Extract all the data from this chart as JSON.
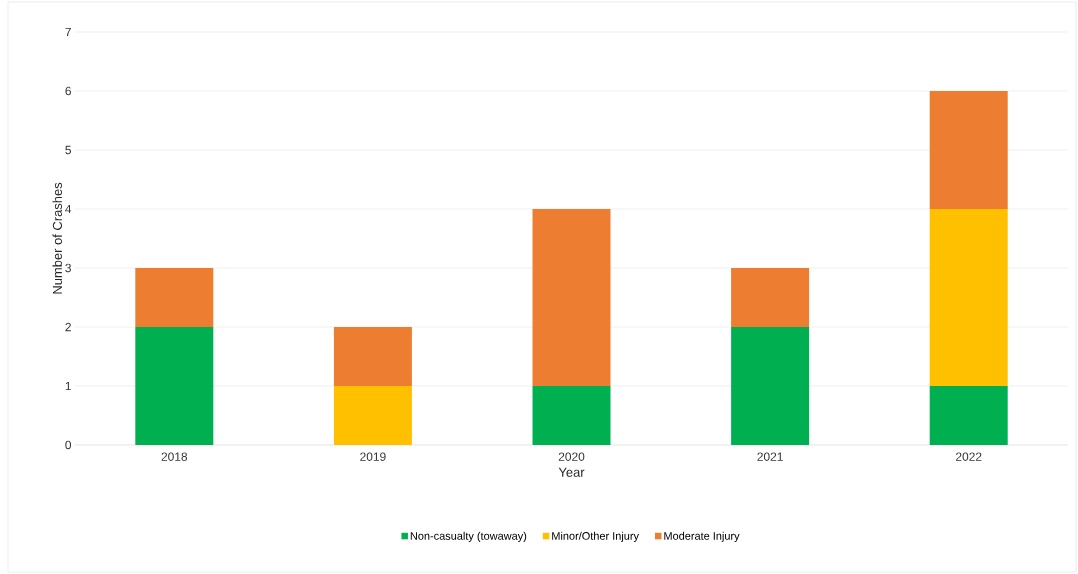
{
  "chart_data": {
    "type": "bar",
    "stacked": true,
    "xlabel": "Year",
    "ylabel": "Number of Crashes",
    "categories": [
      "2018",
      "2019",
      "2020",
      "2021",
      "2022"
    ],
    "series": [
      {
        "name": "Non-casualty (towaway)",
        "color": "#00b050",
        "values": [
          2,
          0,
          1,
          2,
          1
        ]
      },
      {
        "name": "Minor/Other Injury",
        "color": "#ffc000",
        "values": [
          0,
          1,
          0,
          0,
          3
        ]
      },
      {
        "name": "Moderate Injury",
        "color": "#ed7d31",
        "values": [
          1,
          1,
          3,
          1,
          2
        ]
      }
    ],
    "ylim": [
      0,
      7
    ],
    "yticks": [
      0,
      1,
      2,
      3,
      4,
      5,
      6,
      7
    ],
    "grid": "y",
    "legend": "bottom"
  }
}
